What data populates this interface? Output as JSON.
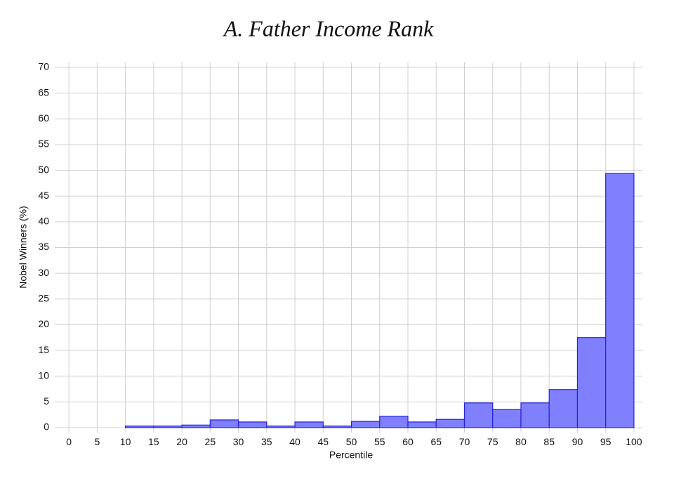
{
  "chart_data": {
    "type": "histogram",
    "title": "A. Father Income Rank",
    "xlabel": "Percentile",
    "ylabel": "Nobel Winners (%)",
    "bins": [
      10,
      15,
      20,
      25,
      30,
      35,
      40,
      45,
      50,
      55,
      60,
      65,
      70,
      75,
      80,
      85,
      90,
      95,
      100
    ],
    "values": [
      0.3,
      0.3,
      0.5,
      1.5,
      1.1,
      0.3,
      1.1,
      0.3,
      1.2,
      2.2,
      1.1,
      1.6,
      4.8,
      3.5,
      4.8,
      7.4,
      17.5,
      49.4
    ],
    "color": "#8080ff",
    "edgecolor": "#2222dd",
    "xlim": [
      -2.5,
      101.5
    ],
    "ylim": [
      -1,
      71
    ],
    "xticks": [
      0,
      5,
      10,
      15,
      20,
      25,
      30,
      35,
      40,
      45,
      50,
      55,
      60,
      65,
      70,
      75,
      80,
      85,
      90,
      95,
      100
    ],
    "yticks": [
      0,
      5,
      10,
      15,
      20,
      25,
      30,
      35,
      40,
      45,
      50,
      55,
      60,
      65,
      70
    ],
    "grid": true
  }
}
